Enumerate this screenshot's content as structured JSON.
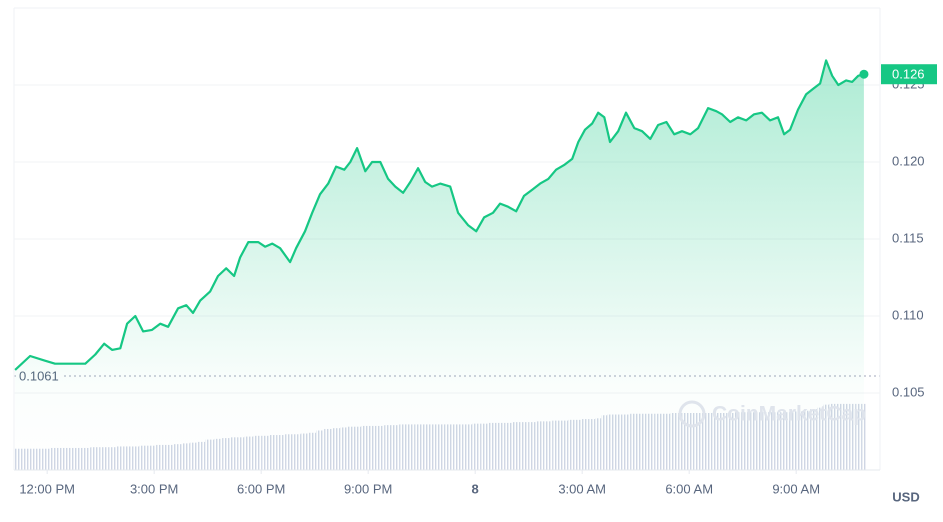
{
  "chart_data": {
    "type": "line",
    "color": "#16c784",
    "x": [
      -0.9,
      -0.48,
      -0.06,
      0.22,
      0.64,
      1.07,
      1.35,
      1.6,
      1.82,
      2.05,
      2.24,
      2.47,
      2.69,
      2.94,
      3.17,
      3.39,
      3.67,
      3.9,
      4.09,
      4.29,
      4.57,
      4.79,
      5.02,
      5.24,
      5.41,
      5.64,
      5.92,
      6.11,
      6.31,
      6.53,
      6.81,
      6.98,
      7.23,
      7.43,
      7.65,
      7.88,
      8.1,
      8.33,
      8.5,
      8.69,
      8.92,
      9.11,
      9.34,
      9.56,
      9.76,
      9.98,
      10.18,
      10.4,
      10.6,
      10.79,
      11.02,
      11.3,
      11.52,
      11.8,
      12.03,
      12.25,
      12.5,
      12.7,
      12.92,
      13.15,
      13.37,
      13.6,
      13.82,
      14.05,
      14.27,
      14.49,
      14.72,
      14.89,
      15.08,
      15.28,
      15.45,
      15.62,
      15.78,
      16.01,
      16.23,
      16.46,
      16.68,
      16.91,
      17.13,
      17.36,
      17.58,
      17.8,
      18.03,
      18.25,
      18.53,
      18.76,
      18.92,
      19.15,
      19.37,
      19.6,
      19.82,
      20.04,
      20.27,
      20.49,
      20.66,
      20.83,
      21.05,
      21.28,
      21.5,
      21.67,
      21.84,
      22.01,
      22.18,
      22.4,
      22.57,
      22.74,
      22.9
    ],
    "values": [
      0.1065,
      0.1074,
      0.1071,
      0.1069,
      0.1069,
      0.1069,
      0.1075,
      0.1082,
      0.1078,
      0.1079,
      0.1095,
      0.11,
      0.109,
      0.1091,
      0.1095,
      0.1093,
      0.1105,
      0.1107,
      0.1102,
      0.111,
      0.1116,
      0.1126,
      0.1131,
      0.1126,
      0.1138,
      0.1148,
      0.1148,
      0.1145,
      0.1147,
      0.1144,
      0.1135,
      0.1144,
      0.1155,
      0.1167,
      0.1179,
      0.1186,
      0.1197,
      0.1195,
      0.12,
      0.1209,
      0.1194,
      0.12,
      0.12,
      0.1189,
      0.1184,
      0.118,
      0.1187,
      0.1196,
      0.1187,
      0.1184,
      0.1186,
      0.1184,
      0.1167,
      0.1159,
      0.1155,
      0.1164,
      0.1167,
      0.1173,
      0.1171,
      0.1168,
      0.1178,
      0.1182,
      0.1186,
      0.1189,
      0.1195,
      0.1198,
      0.1202,
      0.1213,
      0.1221,
      0.1225,
      0.1232,
      0.1229,
      0.1213,
      0.122,
      0.1232,
      0.1222,
      0.122,
      0.1215,
      0.1224,
      0.1226,
      0.1218,
      0.122,
      0.1218,
      0.1222,
      0.1235,
      0.1233,
      0.1231,
      0.1226,
      0.1229,
      0.1227,
      0.1231,
      0.1232,
      0.1227,
      0.1229,
      0.1218,
      0.1221,
      0.1234,
      0.1244,
      0.1248,
      0.1251,
      0.1266,
      0.1256,
      0.125,
      0.1253,
      0.1252,
      0.1256,
      0.1257
    ],
    "volume": [
      28,
      28,
      28,
      29,
      29,
      29,
      30,
      30,
      30,
      31,
      31,
      31,
      32,
      32,
      33,
      33,
      34,
      35,
      36,
      37,
      40,
      41,
      42,
      43,
      43,
      44,
      45,
      45,
      46,
      46,
      47,
      47,
      48,
      49,
      52,
      54,
      55,
      56,
      57,
      57,
      58,
      58,
      58,
      59,
      59,
      60,
      60,
      60,
      60,
      60,
      60,
      60,
      60,
      60,
      61,
      61,
      62,
      62,
      62,
      63,
      63,
      63,
      64,
      64,
      65,
      65,
      66,
      66,
      67,
      67,
      68,
      72,
      73,
      73,
      73,
      74,
      74,
      74,
      74,
      74,
      75,
      75,
      75,
      75,
      75,
      75,
      75,
      75,
      76,
      76,
      76,
      76,
      76,
      76,
      76,
      76,
      77,
      78,
      80,
      82,
      86,
      87,
      87,
      87,
      87,
      87,
      87
    ],
    "volume_lim": [
      0,
      100
    ],
    "volume_color": "#cfd6e4",
    "baseline": 0.1061,
    "last_label": "0.126",
    "xlim": [
      -0.93,
      23.35
    ],
    "ylim": [
      0.1,
      0.13
    ],
    "xticks": [
      {
        "value": 0,
        "label": "12:00 PM"
      },
      {
        "value": 3,
        "label": "3:00 PM"
      },
      {
        "value": 6,
        "label": "6:00 PM"
      },
      {
        "value": 9,
        "label": "9:00 PM"
      },
      {
        "value": 12,
        "label": "8"
      },
      {
        "value": 15,
        "label": "3:00 AM"
      },
      {
        "value": 18,
        "label": "6:00 AM"
      },
      {
        "value": 21,
        "label": "9:00 AM"
      }
    ],
    "yticks": [
      0.105,
      {
        "value": 0.11,
        "label": "0.110"
      },
      0.115,
      {
        "value": 0.12,
        "label": "0.120"
      },
      0.125
    ],
    "y_label": "USD",
    "watermark": "CoinMarketCap",
    "grid": true
  }
}
